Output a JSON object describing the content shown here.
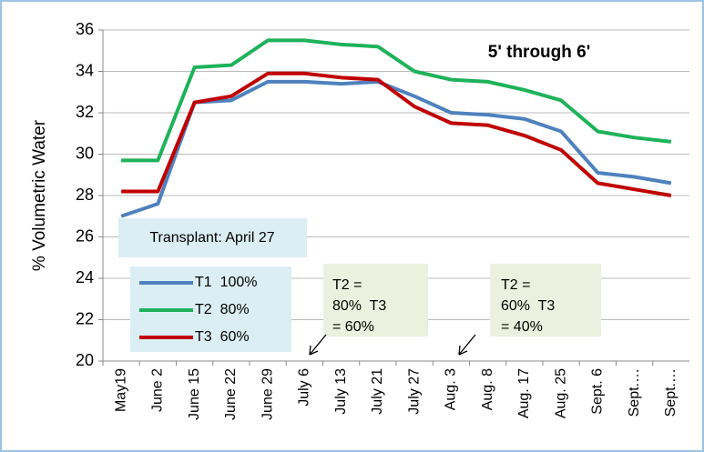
{
  "chart_data": {
    "type": "line",
    "title": "5' through 6'",
    "y_label": "% Volumetric Water",
    "categories": [
      "May19",
      "June 2",
      "June 15",
      "June 22",
      "June 29",
      "July 6",
      "July 13",
      "July 21",
      "July 27",
      "Aug. 3",
      "Aug. 8",
      "Aug. 17",
      "Aug. 25",
      "Sept. 6",
      "Sept.…",
      "Sept.…"
    ],
    "series": [
      {
        "name": "T1  100%",
        "color": "#4f81bd",
        "values": [
          27.0,
          27.6,
          32.5,
          32.6,
          33.5,
          33.5,
          33.4,
          33.5,
          32.8,
          32.0,
          31.9,
          31.7,
          31.1,
          29.1,
          28.9,
          28.6
        ]
      },
      {
        "name": "T2  80%",
        "color": "#1eb25a",
        "values": [
          29.7,
          29.7,
          34.2,
          34.3,
          35.5,
          35.5,
          35.3,
          35.2,
          34.0,
          33.6,
          33.5,
          33.1,
          32.6,
          31.1,
          30.8,
          30.6
        ]
      },
      {
        "name": "T3  60%",
        "color": "#c00000",
        "values": [
          28.2,
          28.2,
          32.5,
          32.8,
          33.9,
          33.9,
          33.7,
          33.6,
          32.3,
          31.5,
          31.4,
          30.9,
          30.2,
          28.6,
          28.3,
          28.0
        ]
      }
    ],
    "ylim": [
      20,
      36
    ],
    "yticks": [
      20,
      22,
      24,
      26,
      28,
      30,
      32,
      34,
      36
    ],
    "grid": true,
    "transplant_note": "Transplant: April 27",
    "annotations": [
      {
        "lines": [
          "T2 =",
          "80%  T3",
          "= 60%"
        ]
      },
      {
        "lines": [
          "T2 =",
          "60%  T3",
          "= 40%"
        ]
      }
    ]
  }
}
